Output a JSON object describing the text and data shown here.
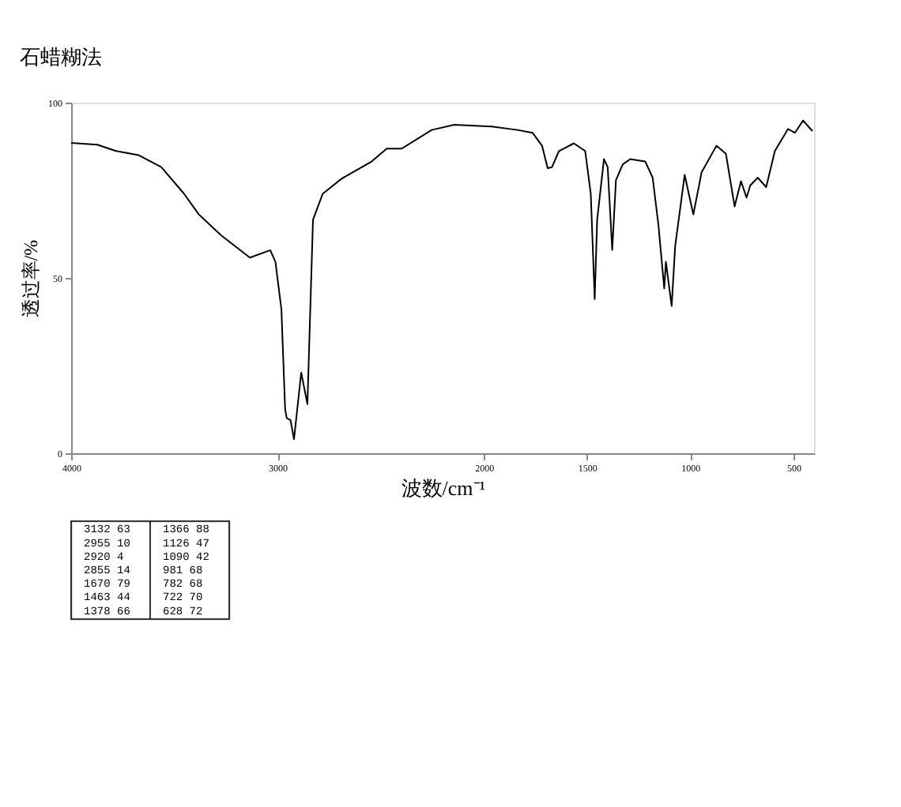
{
  "chart_data": {
    "type": "line",
    "title": "石蜡糊法",
    "xlabel": "波数/cm⁻¹",
    "ylabel": "透过率/%",
    "x": [
      4000,
      3873,
      3782,
      3672,
      3563,
      3454,
      3381,
      3272,
      3134,
      3035,
      3010,
      2981,
      2963,
      2955,
      2937,
      2920,
      2885,
      2855,
      2828,
      2781,
      2690,
      2544,
      2471,
      2398,
      2253,
      2144,
      1962,
      1836,
      1764,
      1718,
      1691,
      1670,
      1636,
      1564,
      1509,
      1482,
      1463,
      1451,
      1418,
      1400,
      1378,
      1360,
      1327,
      1291,
      1218,
      1182,
      1154,
      1126,
      1118,
      1090,
      1073,
      1027,
      985,
      945,
      873,
      827,
      785,
      754,
      727,
      709,
      673,
      632,
      590,
      526,
      493,
      453,
      408
    ],
    "series": [
      {
        "color": "#000000",
        "values": [
          88.5,
          88,
          86.2,
          85,
          81.6,
          74.1,
          68.1,
          62.1,
          55.8,
          57.9,
          54.6,
          41,
          12.5,
          10,
          9.5,
          4,
          23,
          14,
          66.6,
          74,
          78.3,
          83.2,
          86.9,
          86.9,
          92.2,
          93.7,
          93.2,
          92.2,
          91.4,
          87.7,
          81.3,
          81.6,
          86.2,
          88.4,
          86.2,
          74,
          44,
          66.6,
          83.9,
          81.6,
          58,
          77.9,
          82.4,
          83.9,
          83.2,
          78.6,
          65,
          47,
          54.6,
          42,
          59.1,
          79.4,
          68.1,
          80.1,
          87.7,
          85.4,
          70.4,
          77.6,
          72.9,
          76.4,
          78.6,
          75.9,
          86.2,
          92.5,
          91.4,
          94.9,
          91.9
        ]
      }
    ],
    "xlim": [
      4000,
      400
    ],
    "xticks": [
      4000,
      3000,
      2000,
      1500,
      1000,
      500
    ],
    "ylim": [
      0,
      100
    ],
    "yticks": [
      0,
      50,
      100
    ],
    "grid": false,
    "legend": false,
    "annotations": [
      "3132  63",
      "2955  10",
      "2920   4",
      "2855  14",
      "1670  79",
      "1463  44",
      "1378  66",
      "1366  88",
      "1126  47",
      "1090  42",
      "981  68",
      "782  68",
      "722  70",
      "628  72"
    ]
  }
}
